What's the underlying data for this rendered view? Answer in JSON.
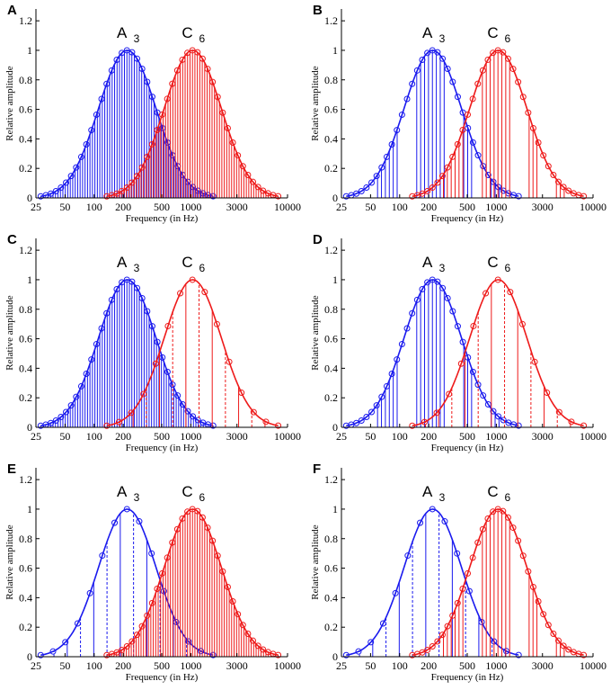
{
  "figure": {
    "xlabel": "Frequency (in Hz)",
    "ylabel": "Relative amplitude",
    "x_ticks": [
      "25",
      "50",
      "100",
      "200",
      "500",
      "1000",
      "3000",
      "10000"
    ],
    "y_ticks": [
      "0",
      "0.2",
      "0.4",
      "0.6",
      "0.8",
      "1",
      "1.2"
    ],
    "colors": {
      "a3": "#1a1aee",
      "c6": "#ee1a1a",
      "axis": "#000000"
    }
  },
  "chart_data": [
    {
      "panel": "A",
      "type": "line+stem",
      "xscale": "log",
      "xlim": [
        25,
        10000
      ],
      "ylim": [
        0,
        1.28
      ],
      "xlabel": "Frequency (in Hz)",
      "ylabel": "Relative amplitude",
      "series": [
        {
          "name": "A",
          "sub": "3",
          "center_hz": 220,
          "f_low": 28,
          "f_high": 1700,
          "stems": "dense-solid"
        },
        {
          "name": "C",
          "sub": "6",
          "center_hz": 1047,
          "f_low": 135,
          "f_high": 8000,
          "stems": "dense-solid"
        }
      ]
    },
    {
      "panel": "B",
      "type": "line+stem",
      "xscale": "log",
      "xlim": [
        25,
        10000
      ],
      "ylim": [
        0,
        1.28
      ],
      "xlabel": "Frequency (in Hz)",
      "ylabel": "Relative amplitude",
      "series": [
        {
          "name": "A",
          "sub": "3",
          "center_hz": 220,
          "f_low": 28,
          "f_high": 1700,
          "stems": "partial-solid"
        },
        {
          "name": "C",
          "sub": "6",
          "center_hz": 1047,
          "f_low": 135,
          "f_high": 8000,
          "stems": "partial-solid"
        }
      ]
    },
    {
      "panel": "C",
      "type": "line+stem",
      "xscale": "log",
      "xlim": [
        25,
        10000
      ],
      "ylim": [
        0,
        1.28
      ],
      "xlabel": "Frequency (in Hz)",
      "ylabel": "Relative amplitude",
      "series": [
        {
          "name": "A",
          "sub": "3",
          "center_hz": 220,
          "f_low": 28,
          "f_high": 1700,
          "stems": "dense-solid"
        },
        {
          "name": "C",
          "sub": "6",
          "center_hz": 1047,
          "f_low": 135,
          "f_high": 8000,
          "stems": "sparse-mixed"
        }
      ]
    },
    {
      "panel": "D",
      "type": "line+stem",
      "xscale": "log",
      "xlim": [
        25,
        10000
      ],
      "ylim": [
        0,
        1.28
      ],
      "xlabel": "Frequency (in Hz)",
      "ylabel": "Relative amplitude",
      "series": [
        {
          "name": "A",
          "sub": "3",
          "center_hz": 220,
          "f_low": 28,
          "f_high": 1700,
          "stems": "partial-solid"
        },
        {
          "name": "C",
          "sub": "6",
          "center_hz": 1047,
          "f_low": 135,
          "f_high": 8000,
          "stems": "sparse-mixed"
        }
      ]
    },
    {
      "panel": "E",
      "type": "line+stem",
      "xscale": "log",
      "xlim": [
        25,
        10000
      ],
      "ylim": [
        0,
        1.28
      ],
      "xlabel": "Frequency (in Hz)",
      "ylabel": "Relative amplitude",
      "series": [
        {
          "name": "A",
          "sub": "3",
          "center_hz": 220,
          "f_low": 28,
          "f_high": 1700,
          "stems": "sparse-mixed"
        },
        {
          "name": "C",
          "sub": "6",
          "center_hz": 1047,
          "f_low": 135,
          "f_high": 8000,
          "stems": "dense-solid"
        }
      ]
    },
    {
      "panel": "F",
      "type": "line+stem",
      "xscale": "log",
      "xlim": [
        25,
        10000
      ],
      "ylim": [
        0,
        1.28
      ],
      "xlabel": "Frequency (in Hz)",
      "ylabel": "Relative amplitude",
      "series": [
        {
          "name": "A",
          "sub": "3",
          "center_hz": 220,
          "f_low": 28,
          "f_high": 1700,
          "stems": "sparse-mixed"
        },
        {
          "name": "C",
          "sub": "6",
          "center_hz": 1047,
          "f_low": 135,
          "f_high": 8000,
          "stems": "partial-solid"
        }
      ]
    }
  ]
}
